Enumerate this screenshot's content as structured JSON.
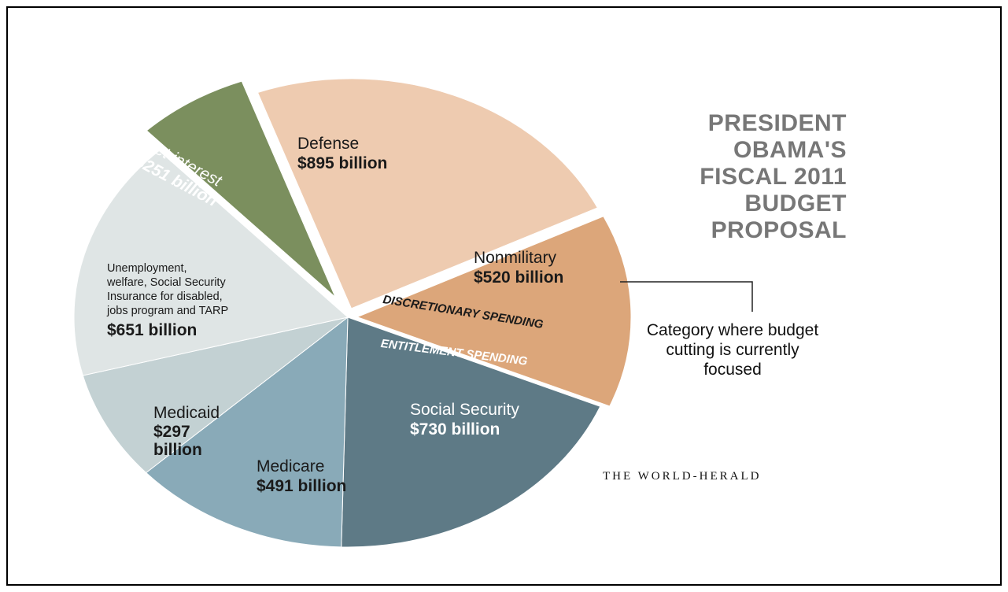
{
  "chart_data": {
    "type": "pie",
    "title_lines": [
      "PRESIDENT",
      "OBAMA'S",
      "FISCAL 2011",
      "BUDGET",
      "PROPOSAL"
    ],
    "source": "THE WORLD-HERALD",
    "groups": {
      "discretionary": "DISCRETIONARY SPENDING",
      "entitlement": "ENTITLEMENT SPENDING"
    },
    "annotation": "Category where budget cutting is currently focused",
    "slices": [
      {
        "name": "Defense",
        "value_label": "$895 billion",
        "value": 895,
        "group": "discretionary",
        "color": "#eecbb0"
      },
      {
        "name": "Nonmilitary",
        "value_label": "$520 billion",
        "value": 520,
        "group": "discretionary",
        "color": "#dca67a"
      },
      {
        "name": "Social Security",
        "value_label": "$730 billion",
        "value": 730,
        "group": "entitlement",
        "color": "#5e7a86"
      },
      {
        "name": "Medicare",
        "value_label": "$491 billion",
        "value": 491,
        "group": "entitlement",
        "color": "#89aab8"
      },
      {
        "name": "Medicaid",
        "value_label": "$297",
        "value_label_2": "billion",
        "value": 297,
        "group": "entitlement",
        "color": "#c3d1d3"
      },
      {
        "name": "Unemployment, welfare, Social Security Insurance for disabled, jobs program and TARP",
        "name_lines": [
          "Unemployment,",
          "welfare, Social Security",
          "Insurance for disabled,",
          "jobs program and TARP"
        ],
        "value_label": "$651 billion",
        "value": 651,
        "group": "other",
        "color": "#dfe5e5"
      },
      {
        "name": "Net interest",
        "value_label": "$251 billion",
        "value": 251,
        "group": "interest",
        "color": "#7b8f5e"
      }
    ]
  }
}
